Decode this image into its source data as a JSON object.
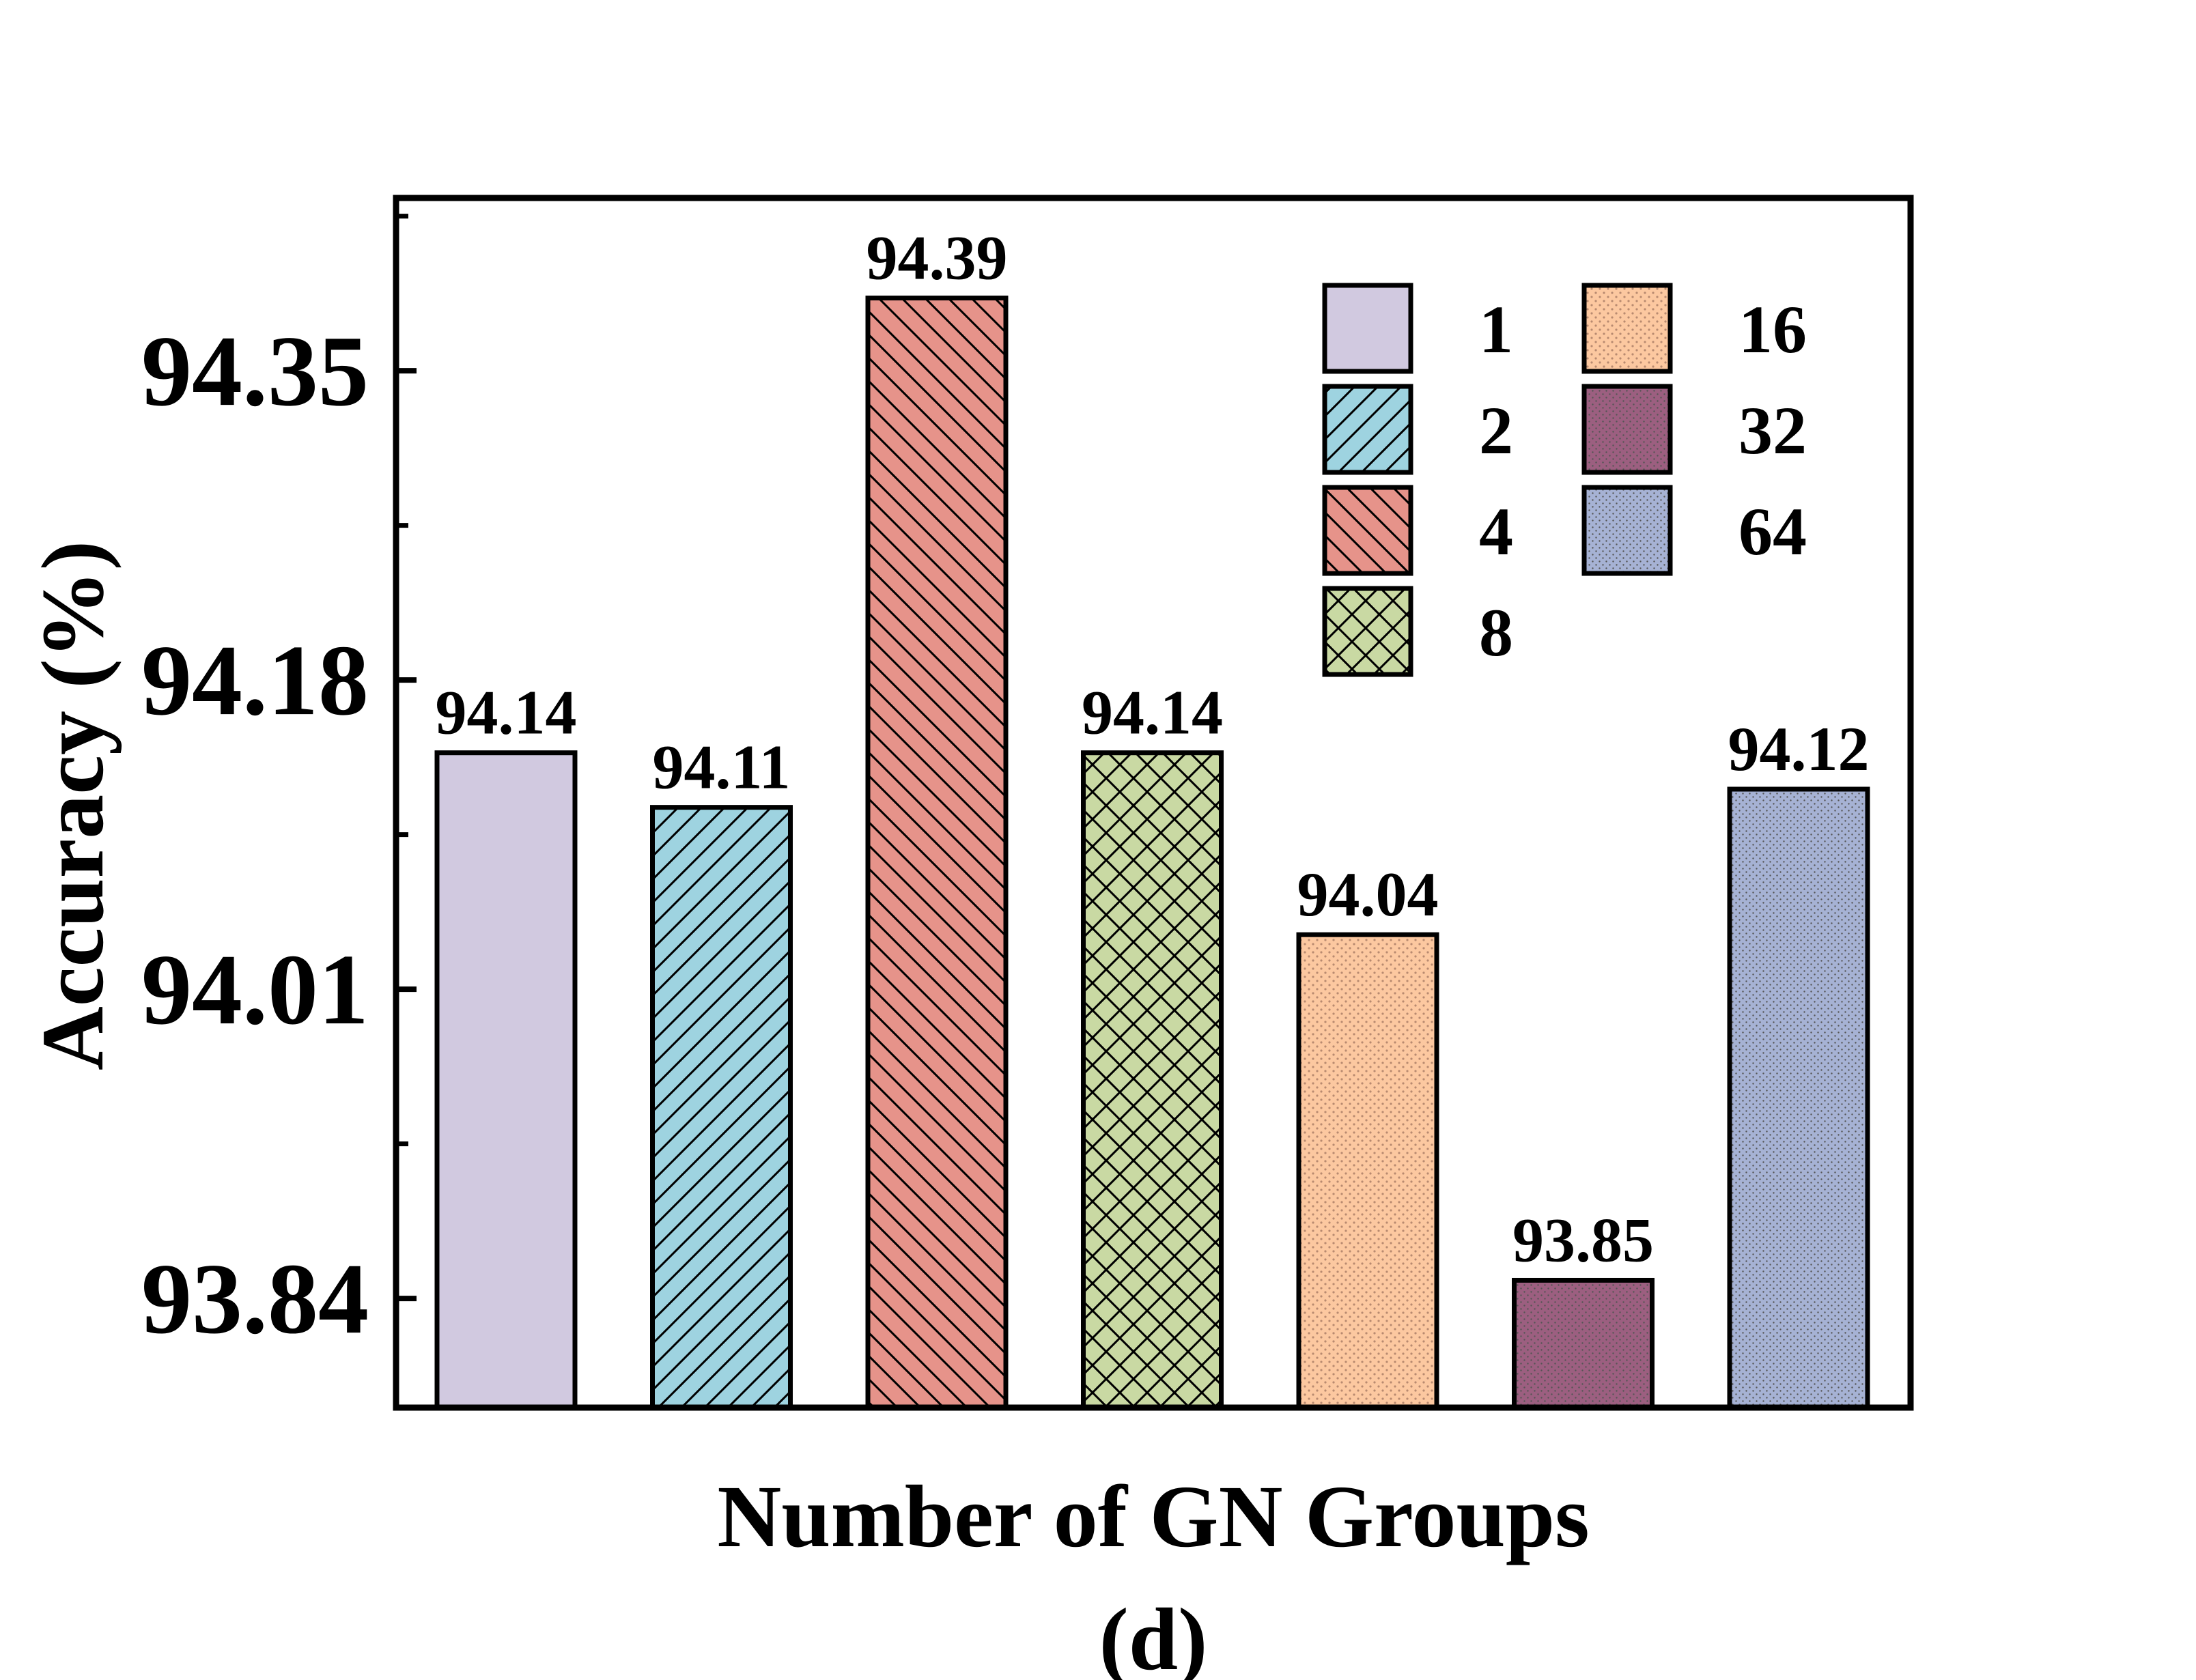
{
  "chart_data": {
    "type": "bar",
    "xlabel": "Number of GN Groups",
    "ylabel": "Accuracy (%)",
    "caption": "(d)",
    "categories": [
      "1",
      "2",
      "4",
      "8",
      "16",
      "32",
      "64"
    ],
    "values": [
      94.14,
      94.11,
      94.39,
      94.14,
      94.04,
      93.85,
      94.12
    ],
    "value_labels": [
      "94.14",
      "94.11",
      "94.39",
      "94.14",
      "94.04",
      "93.85",
      "94.12"
    ],
    "ylim": [
      93.78,
      94.445
    ],
    "yticks": [
      93.84,
      94.01,
      94.18,
      94.35
    ],
    "ytick_labels": [
      "93.84",
      "94.01",
      "94.18",
      "94.35"
    ],
    "legend_position": "top-right",
    "grid": false,
    "series_styles": [
      {
        "fill": "#d1c9e0",
        "pattern": "none"
      },
      {
        "fill": "#9ed3e0",
        "pattern": "forward-diagonal"
      },
      {
        "fill": "#e6938a",
        "pattern": "back-diagonal"
      },
      {
        "fill": "#c9d9a3",
        "pattern": "crosshatch"
      },
      {
        "fill": "#fcc8a0",
        "pattern": "dots"
      },
      {
        "fill": "#9c5f80",
        "pattern": "fine-dots"
      },
      {
        "fill": "#a6b2d4",
        "pattern": "fine-dots"
      }
    ]
  }
}
